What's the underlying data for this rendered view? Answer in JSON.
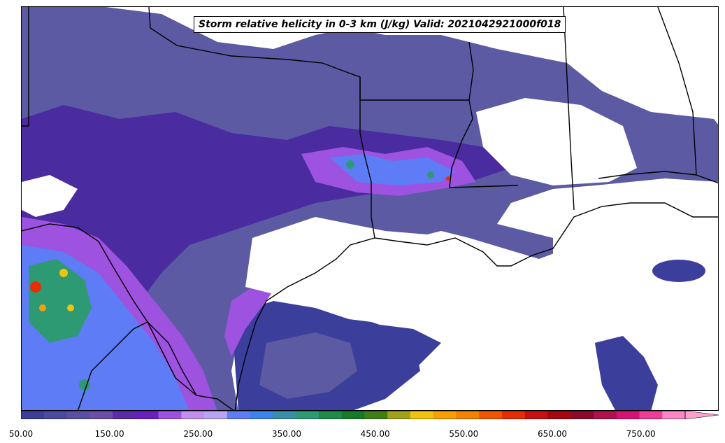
{
  "title": "Storm relative helicity in 0-3 km (J/kg) Valid: 2021042921000f018",
  "colorbar": {
    "min": 50,
    "max": 800,
    "step": 25,
    "extend": "max",
    "tick_labels": [
      "50.00",
      "150.00",
      "250.00",
      "350.00",
      "450.00",
      "550.00",
      "650.00",
      "750.00"
    ],
    "colors": [
      "#3b3f9b",
      "#4a4a9e",
      "#5a4fa2",
      "#6a4fa8",
      "#5b2ca8",
      "#6a1fc0",
      "#9d52e0",
      "#c38ef2",
      "#b8a4f4",
      "#5d7cf5",
      "#3d83ee",
      "#3a8ea8",
      "#2e9a74",
      "#1f8a4a",
      "#167a2a",
      "#3f7f16",
      "#a1a11a",
      "#f0c30c",
      "#f7a000",
      "#f68200",
      "#f25500",
      "#e62e00",
      "#c90f0f",
      "#a8060f",
      "#8c0b2a",
      "#b0104e",
      "#d81272",
      "#ef3c94",
      "#fa86c3"
    ],
    "extend_color": "#ffa0cf"
  }
}
